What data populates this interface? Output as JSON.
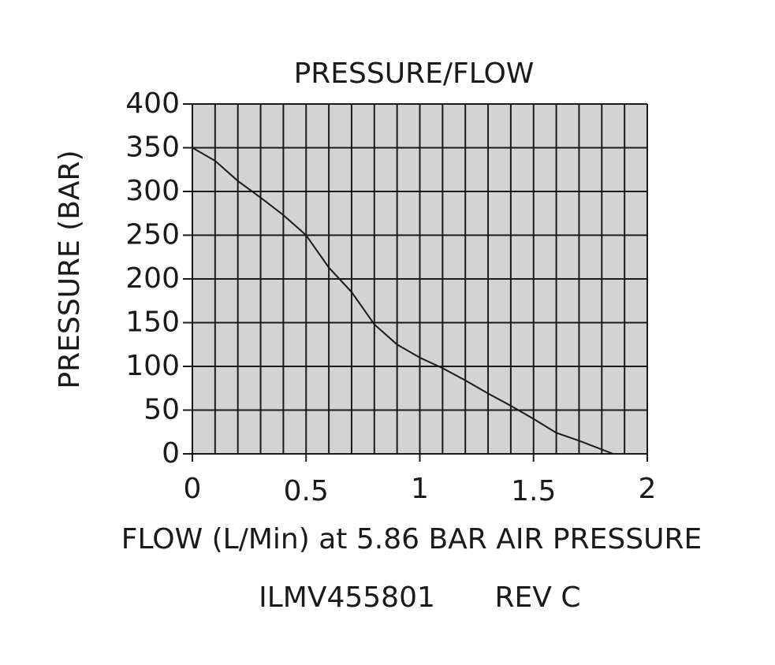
{
  "chart_data": {
    "type": "line",
    "title": "PRESSURE/FLOW",
    "x_label": "FLOW (L/Min) at 5.86 BAR AIR PRESSURE",
    "y_label": "PRESSURE (BAR)",
    "annotations": [
      "ILMV455801",
      "REV C"
    ],
    "x": [
      0,
      0.1,
      0.2,
      0.3,
      0.4,
      0.5,
      0.6,
      0.7,
      0.8,
      0.9,
      1.0,
      1.1,
      1.2,
      1.3,
      1.4,
      1.5,
      1.6,
      1.7,
      1.8,
      1.85
    ],
    "series": [
      {
        "name": "Pressure",
        "color": "#1a1a1a",
        "values": [
          350,
          335,
          312,
          293,
          273,
          250,
          213,
          185,
          148,
          125,
          110,
          98,
          84,
          69,
          55,
          40,
          24,
          15,
          5,
          0
        ]
      }
    ],
    "xlim": [
      0,
      2
    ],
    "xticks": [
      0,
      0.5,
      1,
      1.5,
      2
    ],
    "xminorticks": [
      0.1,
      0.2,
      0.3,
      0.4,
      0.6,
      0.7,
      0.8,
      0.9,
      1.1,
      1.2,
      1.3,
      1.4,
      1.6,
      1.7,
      1.8,
      1.9
    ],
    "ylim": [
      0,
      400
    ],
    "yticks": [
      0,
      50,
      100,
      150,
      200,
      250,
      300,
      350,
      400
    ],
    "grid": true,
    "plot_background": "#d3d3d3"
  }
}
